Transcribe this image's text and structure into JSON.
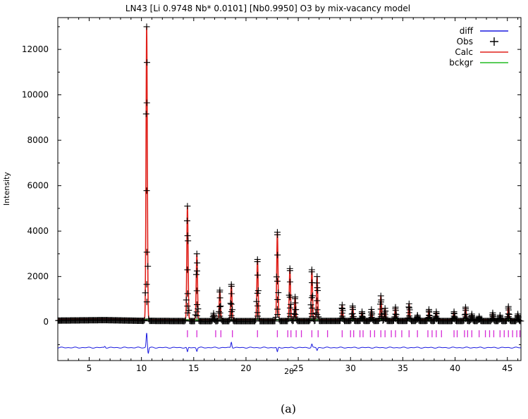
{
  "chart_data": {
    "type": "line",
    "title": "LN43  [Li 0.9748 Nb* 0.0101] [Nb0.9950] O3 by mix-vacancy model",
    "xlabel": "2θ",
    "ylabel": "Intensity",
    "xlim": [
      2,
      46.3
    ],
    "ylim": [
      -1700,
      13400
    ],
    "x_ticks": [
      5,
      10,
      15,
      20,
      25,
      30,
      35,
      40,
      45
    ],
    "y_ticks": [
      0,
      2000,
      4000,
      6000,
      8000,
      10000,
      12000
    ],
    "grid": false,
    "legend_position": "top-right",
    "caption": "(a)",
    "colors": {
      "diff": "#1a1adf",
      "obs": "#000000",
      "calc": "#e0201a",
      "bckgr": "#22bb22",
      "reflections": "#d62ad6"
    },
    "legend": [
      {
        "key": "diff",
        "label": "diff",
        "style": "line"
      },
      {
        "key": "obs",
        "label": "Obs",
        "style": "plus"
      },
      {
        "key": "calc",
        "label": "Calc",
        "style": "line"
      },
      {
        "key": "bckgr",
        "label": "bckgr",
        "style": "line"
      }
    ],
    "background": [
      [
        2,
        120
      ],
      [
        6.5,
        140
      ],
      [
        10,
        110
      ],
      [
        15,
        95
      ],
      [
        20,
        95
      ],
      [
        25,
        100
      ],
      [
        30,
        105
      ],
      [
        35,
        105
      ],
      [
        40,
        100
      ],
      [
        46.3,
        100
      ]
    ],
    "diff_baseline": -1130,
    "peaks": [
      {
        "x": 10.5,
        "y": 13000
      },
      {
        "x": 14.4,
        "y": 5100
      },
      {
        "x": 15.3,
        "y": 3000
      },
      {
        "x": 16.9,
        "y": 380
      },
      {
        "x": 17.5,
        "y": 1400
      },
      {
        "x": 18.6,
        "y": 1650
      },
      {
        "x": 21.1,
        "y": 2750
      },
      {
        "x": 23.0,
        "y": 3950
      },
      {
        "x": 24.2,
        "y": 2350
      },
      {
        "x": 24.7,
        "y": 1100
      },
      {
        "x": 26.3,
        "y": 2300
      },
      {
        "x": 26.8,
        "y": 2000
      },
      {
        "x": 29.2,
        "y": 750
      },
      {
        "x": 30.2,
        "y": 700
      },
      {
        "x": 31.1,
        "y": 450
      },
      {
        "x": 32.0,
        "y": 550
      },
      {
        "x": 32.9,
        "y": 1150
      },
      {
        "x": 33.3,
        "y": 600
      },
      {
        "x": 34.3,
        "y": 650
      },
      {
        "x": 35.6,
        "y": 800
      },
      {
        "x": 36.4,
        "y": 300
      },
      {
        "x": 37.5,
        "y": 550
      },
      {
        "x": 38.2,
        "y": 450
      },
      {
        "x": 39.9,
        "y": 450
      },
      {
        "x": 41.0,
        "y": 650
      },
      {
        "x": 41.6,
        "y": 350
      },
      {
        "x": 42.3,
        "y": 250
      },
      {
        "x": 43.6,
        "y": 400
      },
      {
        "x": 44.3,
        "y": 300
      },
      {
        "x": 45.1,
        "y": 680
      },
      {
        "x": 46.0,
        "y": 350
      }
    ],
    "diff_features": [
      {
        "x": 6.5,
        "y": 60
      },
      {
        "x": 10.5,
        "y": 650
      },
      {
        "x": 10.65,
        "y": -250
      },
      {
        "x": 14.4,
        "y": -200
      },
      {
        "x": 15.3,
        "y": -150
      },
      {
        "x": 18.6,
        "y": 250
      },
      {
        "x": 23.0,
        "y": -200
      },
      {
        "x": 26.3,
        "y": 150
      },
      {
        "x": 26.8,
        "y": -120
      }
    ],
    "reflections_y": -520,
    "reflections": [
      14.4,
      15.3,
      17.1,
      17.6,
      18.7,
      21.1,
      23.0,
      24.0,
      24.3,
      24.8,
      25.3,
      26.3,
      26.9,
      27.8,
      29.2,
      30.0,
      30.3,
      30.9,
      31.2,
      31.9,
      32.3,
      32.9,
      33.3,
      33.9,
      34.3,
      34.9,
      35.6,
      36.4,
      37.4,
      37.8,
      38.2,
      38.7,
      39.9,
      40.2,
      40.9,
      41.2,
      41.6,
      42.3,
      42.9,
      43.3,
      43.7,
      44.3,
      44.7,
      45.1,
      45.5,
      45.9,
      46.2
    ]
  }
}
